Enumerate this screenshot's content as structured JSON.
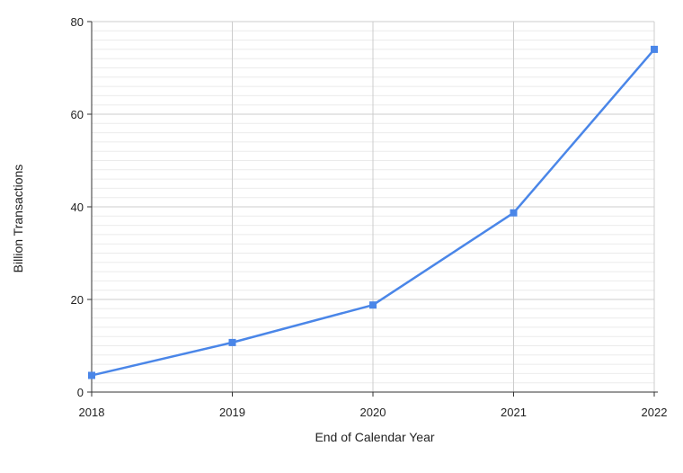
{
  "chart_data": {
    "type": "line",
    "title": "",
    "xlabel": "End of Calendar Year",
    "ylabel": "Billion Transactions",
    "categories": [
      "2018",
      "2019",
      "2020",
      "2021",
      "2022"
    ],
    "series": [
      {
        "values": [
          3.6,
          10.7,
          18.8,
          38.7,
          74.0
        ],
        "color": "#4a86e8"
      }
    ],
    "ylim": [
      0,
      80
    ],
    "yticks": [
      0,
      20,
      40,
      60,
      80
    ],
    "grid": true,
    "minor_grid": true,
    "legend": "none",
    "colors": {
      "line": "#4a86e8",
      "major_grid": "#cccccc",
      "minor_grid": "#ebebeb",
      "axis": "#333333"
    }
  }
}
